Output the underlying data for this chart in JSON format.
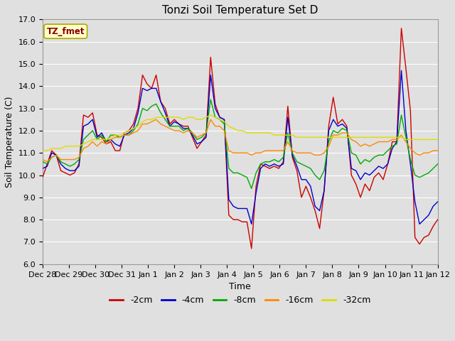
{
  "title": "Tonzi Soil Temperature Set D",
  "xlabel": "Time",
  "ylabel": "Soil Temperature (C)",
  "ylim": [
    6.0,
    17.0
  ],
  "yticks": [
    6.0,
    7.0,
    8.0,
    9.0,
    10.0,
    11.0,
    12.0,
    13.0,
    14.0,
    15.0,
    16.0,
    17.0
  ],
  "xtick_labels": [
    "Dec 28",
    "Dec 29",
    "Dec 30",
    "Dec 31",
    "Jan 1",
    "Jan 2",
    "Jan 3",
    "Jan 4",
    "Jan 5",
    "Jan 6",
    "Jan 7",
    "Jan 8",
    "Jan 9",
    "Jan 10",
    "Jan 11",
    "Jan 12"
  ],
  "legend_label": "TZ_fmet",
  "series": {
    "-2cm": [
      9.9,
      10.5,
      11.1,
      10.9,
      10.2,
      10.1,
      10.0,
      10.1,
      10.5,
      12.7,
      12.6,
      12.8,
      11.8,
      11.7,
      11.4,
      11.5,
      11.1,
      11.1,
      11.9,
      12.0,
      12.3,
      13.0,
      14.5,
      14.1,
      13.9,
      14.5,
      13.3,
      13.0,
      12.3,
      12.5,
      12.3,
      12.2,
      12.2,
      11.7,
      11.2,
      11.5,
      11.8,
      15.3,
      13.2,
      12.6,
      12.5,
      8.2,
      8.0,
      8.0,
      7.9,
      7.9,
      6.7,
      9.5,
      10.5,
      10.4,
      10.3,
      10.4,
      10.3,
      10.6,
      13.1,
      10.8,
      10.2,
      9.0,
      9.5,
      9.0,
      8.4,
      7.6,
      9.3,
      12.2,
      13.5,
      12.3,
      12.5,
      12.2,
      10.0,
      9.6,
      9.0,
      9.6,
      9.3,
      9.9,
      10.1,
      9.8,
      10.5,
      11.5,
      11.5,
      16.6,
      14.8,
      12.9,
      7.2,
      6.9,
      7.2,
      7.3,
      7.7,
      8.0
    ],
    "-4cm": [
      10.3,
      10.4,
      11.0,
      10.9,
      10.5,
      10.3,
      10.2,
      10.2,
      10.4,
      12.2,
      12.3,
      12.5,
      11.7,
      11.9,
      11.5,
      11.6,
      11.4,
      11.3,
      11.8,
      11.9,
      12.1,
      12.8,
      13.9,
      13.8,
      13.9,
      13.9,
      13.3,
      12.8,
      12.2,
      12.4,
      12.3,
      12.1,
      12.1,
      11.8,
      11.4,
      11.5,
      11.7,
      14.5,
      13.0,
      12.6,
      12.5,
      8.9,
      8.6,
      8.5,
      8.5,
      8.5,
      7.8,
      9.2,
      10.3,
      10.5,
      10.4,
      10.5,
      10.4,
      10.5,
      12.6,
      10.9,
      10.4,
      9.8,
      9.8,
      9.5,
      8.6,
      8.4,
      9.3,
      12.0,
      12.5,
      12.2,
      12.3,
      12.1,
      10.3,
      10.2,
      9.8,
      10.1,
      10.0,
      10.2,
      10.4,
      10.3,
      10.5,
      11.2,
      11.5,
      14.7,
      12.0,
      10.5,
      8.8,
      7.8,
      8.0,
      8.2,
      8.6,
      8.8
    ],
    "-8cm": [
      10.6,
      10.5,
      10.8,
      10.9,
      10.6,
      10.5,
      10.4,
      10.5,
      10.7,
      11.6,
      11.8,
      12.0,
      11.6,
      11.8,
      11.5,
      11.8,
      11.8,
      11.7,
      11.8,
      11.8,
      12.0,
      12.3,
      13.0,
      12.9,
      13.1,
      13.2,
      12.8,
      12.5,
      12.2,
      12.2,
      12.2,
      12.0,
      12.1,
      11.9,
      11.6,
      11.7,
      11.9,
      13.4,
      12.6,
      12.5,
      12.3,
      10.3,
      10.1,
      10.1,
      10.0,
      9.9,
      9.4,
      10.1,
      10.5,
      10.6,
      10.6,
      10.7,
      10.6,
      10.8,
      11.9,
      11.0,
      10.6,
      10.5,
      10.4,
      10.3,
      10.0,
      9.8,
      10.2,
      11.5,
      12.0,
      11.9,
      12.1,
      12.0,
      11.0,
      10.9,
      10.5,
      10.7,
      10.6,
      10.8,
      10.9,
      10.9,
      11.1,
      11.3,
      11.4,
      12.7,
      11.7,
      10.7,
      10.0,
      9.9,
      10.0,
      10.1,
      10.3,
      10.5
    ],
    "-16cm": [
      10.7,
      10.6,
      10.8,
      10.9,
      10.7,
      10.7,
      10.7,
      10.7,
      10.8,
      11.2,
      11.3,
      11.5,
      11.3,
      11.5,
      11.4,
      11.6,
      11.7,
      11.7,
      11.8,
      11.8,
      11.9,
      12.0,
      12.3,
      12.3,
      12.4,
      12.5,
      12.3,
      12.2,
      12.1,
      12.0,
      12.0,
      11.9,
      12.0,
      11.9,
      11.7,
      11.8,
      11.9,
      12.5,
      12.2,
      12.2,
      12.0,
      11.1,
      11.0,
      11.0,
      11.0,
      11.0,
      10.9,
      11.0,
      11.0,
      11.1,
      11.1,
      11.1,
      11.1,
      11.1,
      11.5,
      11.1,
      11.0,
      11.0,
      11.0,
      11.0,
      10.9,
      10.9,
      11.0,
      11.3,
      11.8,
      11.8,
      11.9,
      11.9,
      11.6,
      11.5,
      11.3,
      11.4,
      11.3,
      11.4,
      11.5,
      11.5,
      11.5,
      11.6,
      11.6,
      11.8,
      11.5,
      11.2,
      11.0,
      10.9,
      11.0,
      11.0,
      11.1,
      11.1
    ],
    "-32cm": [
      11.1,
      11.1,
      11.2,
      11.2,
      11.2,
      11.3,
      11.3,
      11.3,
      11.3,
      11.4,
      11.5,
      11.6,
      11.6,
      11.6,
      11.6,
      11.7,
      11.8,
      11.8,
      11.9,
      12.0,
      12.1,
      12.2,
      12.4,
      12.5,
      12.5,
      12.6,
      12.6,
      12.6,
      12.6,
      12.6,
      12.6,
      12.5,
      12.6,
      12.6,
      12.5,
      12.5,
      12.6,
      12.7,
      12.6,
      12.5,
      12.4,
      12.2,
      12.1,
      12.0,
      12.0,
      11.9,
      11.9,
      11.9,
      11.9,
      11.9,
      11.9,
      11.8,
      11.8,
      11.8,
      11.8,
      11.8,
      11.7,
      11.7,
      11.7,
      11.7,
      11.7,
      11.7,
      11.7,
      11.7,
      11.7,
      11.7,
      11.7,
      11.7,
      11.7,
      11.7,
      11.7,
      11.7,
      11.7,
      11.7,
      11.7,
      11.7,
      11.7,
      11.7,
      11.7,
      11.7,
      11.6,
      11.6,
      11.6,
      11.6,
      11.6,
      11.6,
      11.6,
      11.6
    ]
  },
  "colors": {
    "-2cm": "#cc0000",
    "-4cm": "#0000cc",
    "-8cm": "#00aa00",
    "-16cm": "#ff8800",
    "-32cm": "#dddd00"
  },
  "n_points": 88,
  "fig_bg_color": "#e0e0e0",
  "plot_bg_color": "#e0e0e0",
  "grid_color": "#ffffff",
  "legend_box_facecolor": "#ffffcc",
  "legend_box_edgecolor": "#aaaa00",
  "legend_text_color": "#8B0000",
  "title_fontsize": 11,
  "axis_label_fontsize": 9,
  "tick_fontsize": 8
}
